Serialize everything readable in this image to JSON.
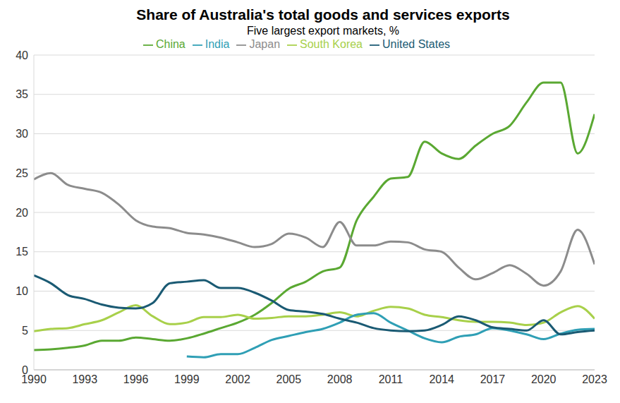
{
  "chart_data": {
    "type": "line",
    "title": "Share of Australia's total goods and services exports",
    "subtitle": "Five largest export markets, %",
    "x": [
      1990,
      1991,
      1992,
      1993,
      1994,
      1995,
      1996,
      1997,
      1998,
      1999,
      2000,
      2001,
      2002,
      2003,
      2004,
      2005,
      2006,
      2007,
      2008,
      2009,
      2010,
      2011,
      2012,
      2013,
      2014,
      2015,
      2016,
      2017,
      2018,
      2019,
      2020,
      2021,
      2022,
      2023
    ],
    "series": [
      {
        "name": "China",
        "color": "#5aa832",
        "values": [
          2.5,
          2.6,
          2.8,
          3.1,
          3.7,
          3.7,
          4.1,
          3.9,
          3.7,
          4.0,
          4.6,
          5.3,
          6.0,
          7.0,
          8.5,
          10.3,
          11.2,
          12.5,
          13.0,
          19.0,
          22.0,
          24.3,
          24.5,
          29.0,
          27.5,
          26.8,
          28.5,
          30.0,
          31.0,
          34.0,
          36.5,
          36.5,
          27.5,
          32.5
        ]
      },
      {
        "name": "Japan",
        "color": "#8c8c8c",
        "values": [
          24.2,
          25.0,
          23.5,
          23.0,
          22.5,
          21.0,
          19.0,
          18.2,
          18.0,
          17.4,
          17.2,
          16.8,
          16.2,
          15.6,
          16.0,
          17.3,
          16.8,
          15.6,
          18.8,
          15.8,
          15.8,
          16.3,
          16.2,
          15.3,
          15.0,
          13.0,
          11.5,
          12.3,
          13.3,
          12.2,
          10.7,
          12.5,
          17.8,
          13.4
        ]
      },
      {
        "name": "South Korea",
        "color": "#a8d04a",
        "values": [
          4.9,
          5.2,
          5.3,
          5.8,
          6.3,
          7.3,
          8.2,
          6.8,
          5.8,
          6.0,
          6.7,
          6.7,
          7.0,
          6.5,
          6.6,
          6.8,
          6.8,
          7.0,
          7.3,
          6.8,
          7.5,
          8.0,
          7.8,
          7.0,
          6.7,
          6.3,
          6.1,
          6.1,
          6.0,
          5.7,
          6.0,
          7.3,
          8.1,
          6.5
        ]
      },
      {
        "name": "India",
        "color": "#2f9fb5",
        "values": [
          null,
          null,
          null,
          null,
          null,
          null,
          null,
          null,
          null,
          1.7,
          1.6,
          2.0,
          2.0,
          2.8,
          3.8,
          4.3,
          4.8,
          5.2,
          6.0,
          7.0,
          7.2,
          6.0,
          5.0,
          4.0,
          3.5,
          4.2,
          4.5,
          5.3,
          5.0,
          4.5,
          3.9,
          4.6,
          5.1,
          5.2
        ]
      },
      {
        "name": "United States",
        "color": "#1a5a73",
        "values": [
          12.0,
          11.0,
          9.5,
          9.0,
          8.3,
          7.9,
          7.8,
          8.5,
          11.0,
          11.2,
          11.4,
          10.4,
          10.4,
          9.8,
          8.8,
          7.6,
          7.4,
          7.1,
          6.5,
          6.0,
          5.3,
          5.0,
          4.9,
          5.0,
          5.7,
          6.8,
          6.3,
          5.4,
          5.2,
          5.0,
          6.3,
          4.5,
          4.8,
          5.0
        ]
      }
    ],
    "xlim": [
      1990,
      2023
    ],
    "xticks": [
      1990,
      1993,
      1996,
      1999,
      2002,
      2005,
      2008,
      2011,
      2014,
      2017,
      2020,
      2023
    ],
    "ylim": [
      0,
      40
    ],
    "yticks": [
      0,
      5,
      10,
      15,
      20,
      25,
      30,
      35,
      40
    ],
    "grid": true,
    "legend": "top",
    "line_style": "smooth",
    "marker": "none"
  }
}
